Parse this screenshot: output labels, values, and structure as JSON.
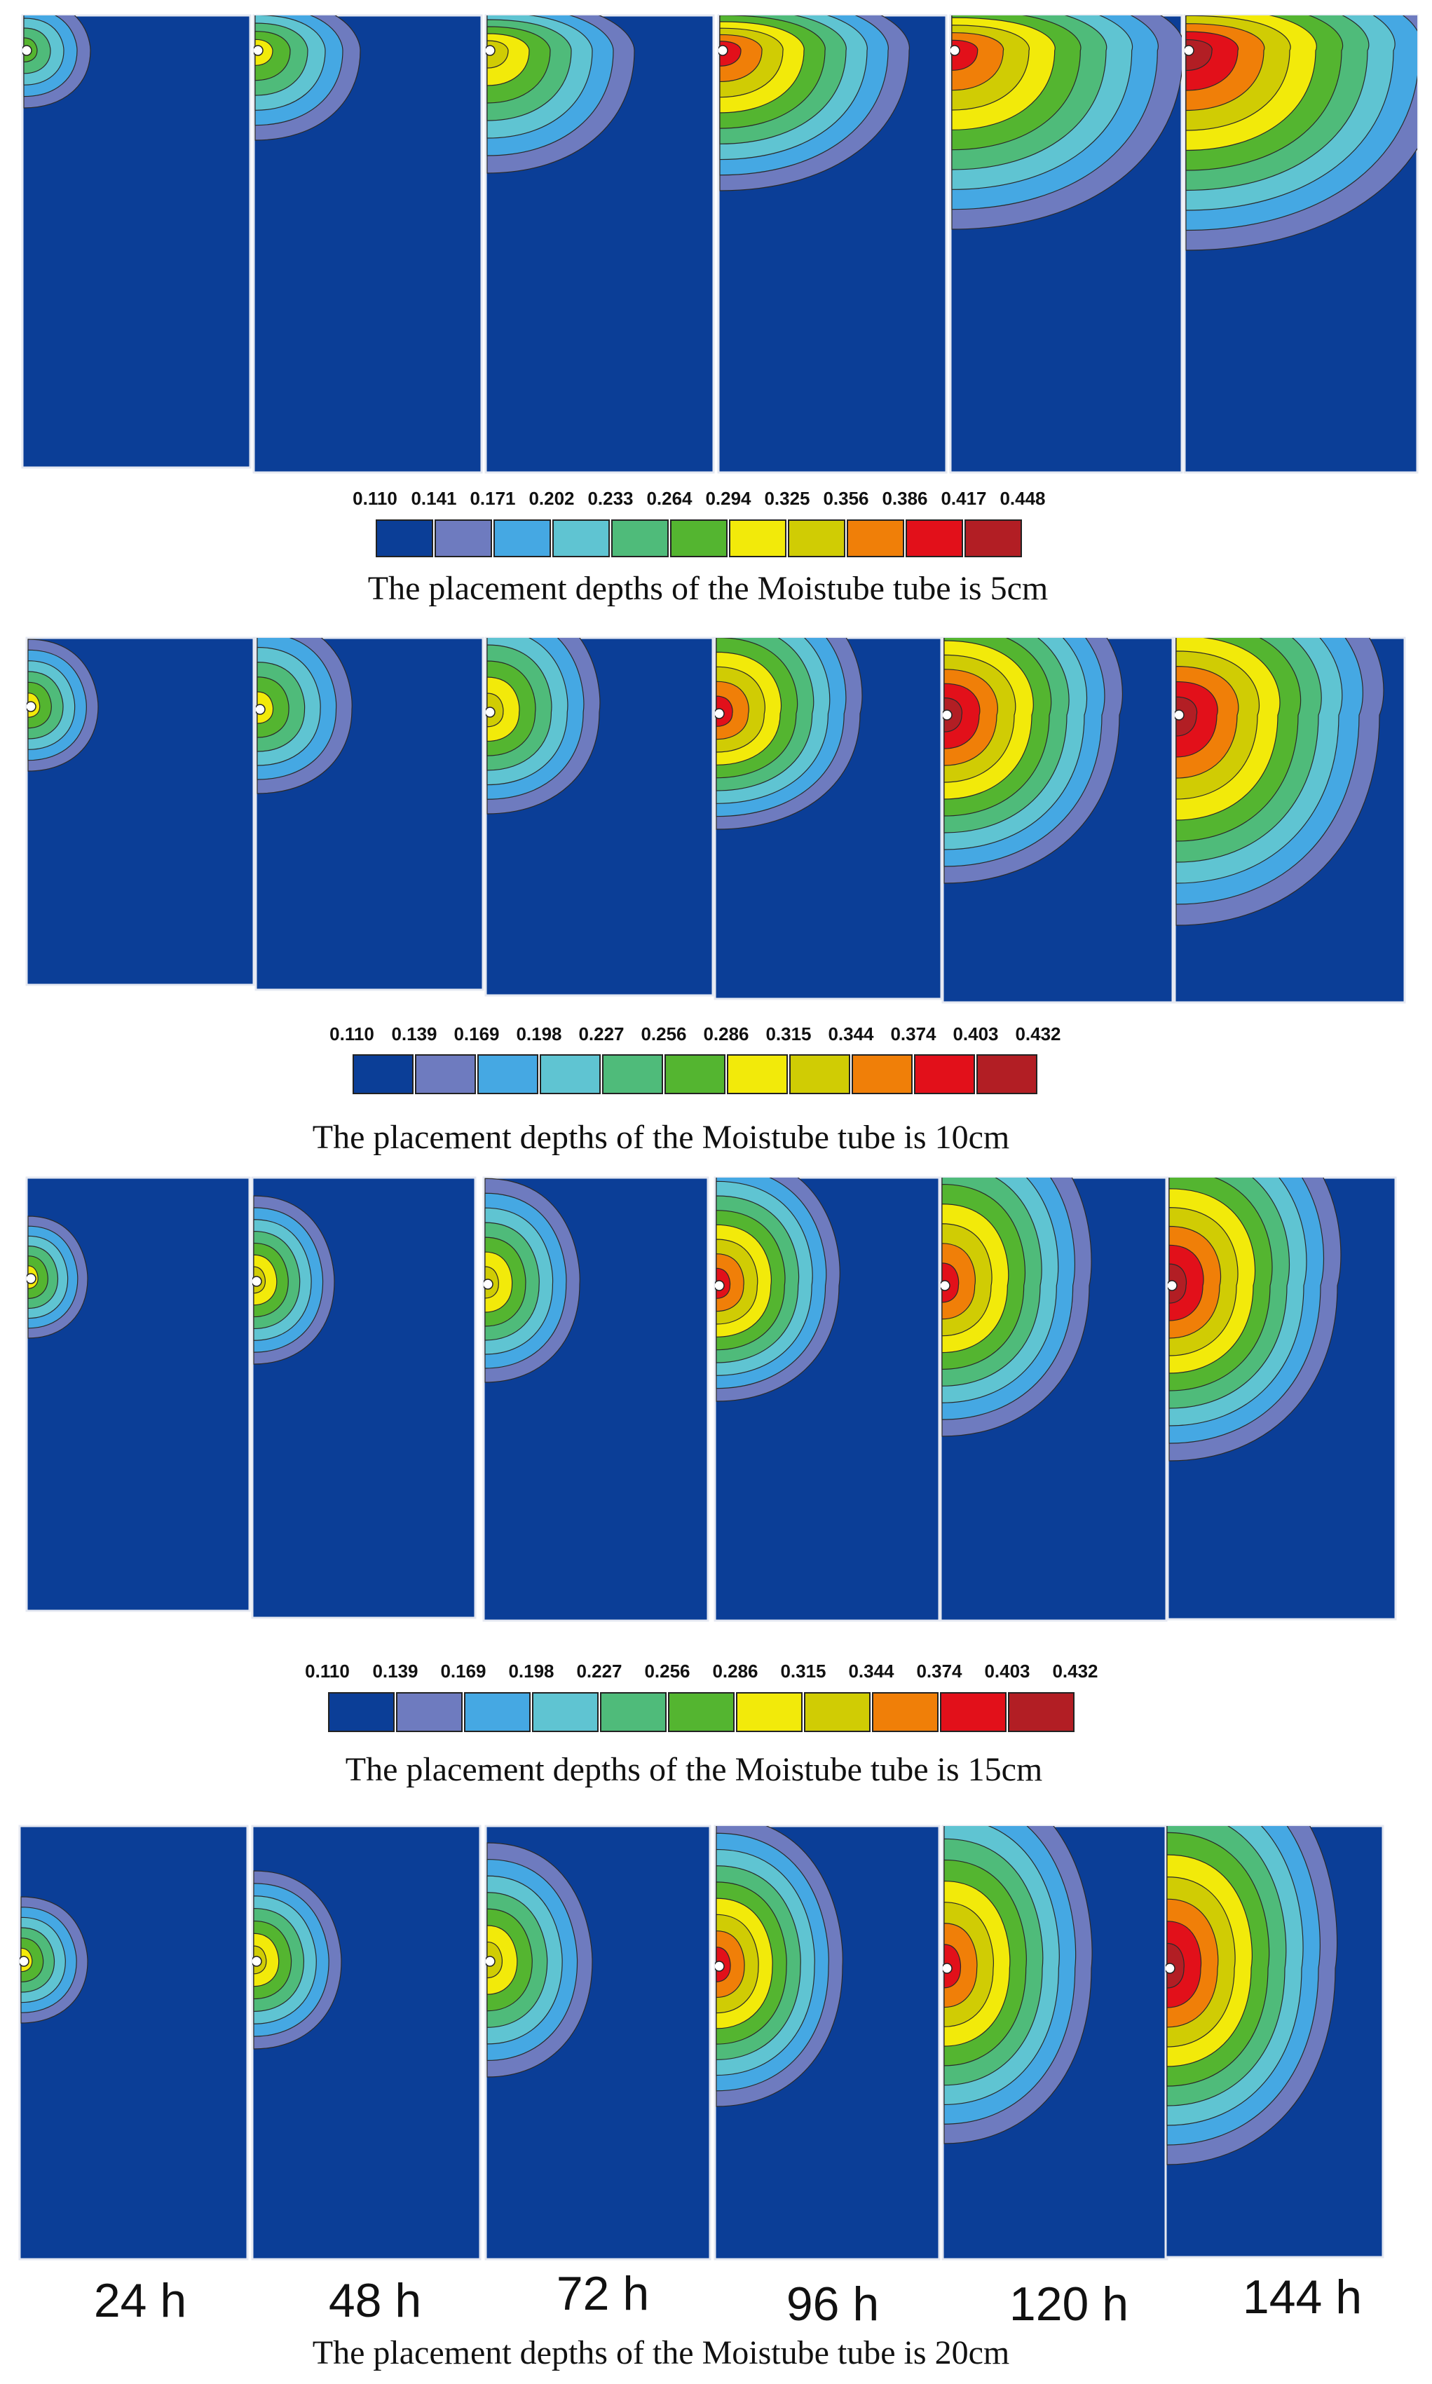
{
  "figure": {
    "background_color": "#0B3E97",
    "panel_border_color": "#E6E9F2",
    "contour_line_color": "#2A2A2A",
    "tube_color": "#FFFFFF",
    "time_labels": [
      "24 h",
      "48 h",
      "72 h",
      "96 h",
      "120 h",
      "144 h"
    ]
  },
  "color_scale": [
    "#0B3E97",
    "#6E7BBF",
    "#45A8E3",
    "#5FC4D2",
    "#4FBB7A",
    "#54B530",
    "#F2EA0A",
    "#D0CC04",
    "#F07F08",
    "#E2101A",
    "#B21E24"
  ],
  "blocks": [
    {
      "caption": "The placement depths of the Moistube tube is 5cm",
      "legend_ticks": [
        "0.110",
        "0.141",
        "0.171",
        "0.202",
        "0.233",
        "0.264",
        "0.294",
        "0.325",
        "0.356",
        "0.386",
        "0.417",
        "0.448"
      ],
      "panels": [
        {
          "time": "24 h",
          "levels": 6
        },
        {
          "time": "48 h",
          "levels": 7
        },
        {
          "time": "72 h",
          "levels": 8
        },
        {
          "time": "96 h",
          "levels": 10
        },
        {
          "time": "120 h",
          "levels": 10
        },
        {
          "time": "144 h",
          "levels": 11
        }
      ]
    },
    {
      "caption": "The placement depths of the Moistube tube is 10cm",
      "legend_ticks": [
        "0.110",
        "0.139",
        "0.169",
        "0.198",
        "0.227",
        "0.256",
        "0.286",
        "0.315",
        "0.344",
        "0.374",
        "0.403",
        "0.432"
      ],
      "panels": [
        {
          "time": "24 h",
          "levels": 7
        },
        {
          "time": "48 h",
          "levels": 7
        },
        {
          "time": "72 h",
          "levels": 8
        },
        {
          "time": "96 h",
          "levels": 10
        },
        {
          "time": "120 h",
          "levels": 11
        },
        {
          "time": "144 h",
          "levels": 11
        }
      ]
    },
    {
      "caption": "The placement depths of the Moistube tube is 15cm",
      "legend_ticks": [
        "0.110",
        "0.139",
        "0.169",
        "0.198",
        "0.227",
        "0.256",
        "0.286",
        "0.315",
        "0.344",
        "0.374",
        "0.403",
        "0.432"
      ],
      "panels": [
        {
          "time": "24 h",
          "levels": 7
        },
        {
          "time": "48 h",
          "levels": 8
        },
        {
          "time": "72 h",
          "levels": 8
        },
        {
          "time": "96 h",
          "levels": 10
        },
        {
          "time": "120 h",
          "levels": 10
        },
        {
          "time": "144 h",
          "levels": 11
        }
      ]
    },
    {
      "caption": "The placement depths of the Moistube tube is 20cm",
      "legend_ticks": [],
      "panels": [
        {
          "time": "24 h",
          "levels": 7
        },
        {
          "time": "48 h",
          "levels": 8
        },
        {
          "time": "72 h",
          "levels": 8
        },
        {
          "time": "96 h",
          "levels": 10
        },
        {
          "time": "120 h",
          "levels": 10
        },
        {
          "time": "144 h",
          "levels": 11
        }
      ]
    }
  ]
}
